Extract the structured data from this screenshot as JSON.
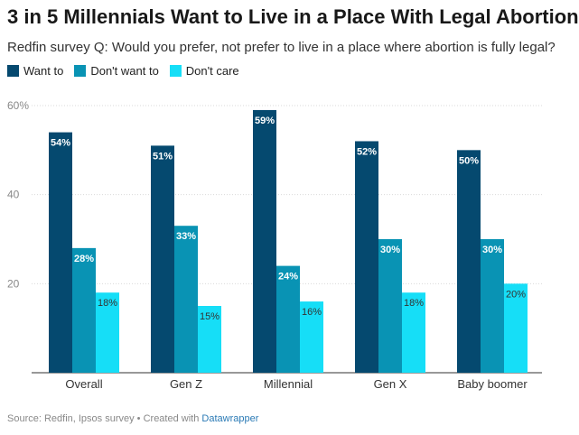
{
  "title": "3 in 5 Millennials Want to Live in a Place With Legal Abortion",
  "subtitle": "Redfin survey Q: Would you prefer, not prefer to live in a place where abortion is fully legal?",
  "footer": {
    "prefix": "Source: Redfin, Ipsos survey • Created with ",
    "link_label": "Datawrapper"
  },
  "chart_data": {
    "type": "bar",
    "categories": [
      "Overall",
      "Gen Z",
      "Millennial",
      "Gen X",
      "Baby boomer"
    ],
    "series": [
      {
        "name": "Want to",
        "color": "#05496f",
        "values": [
          54,
          51,
          59,
          52,
          50
        ]
      },
      {
        "name": "Don't want to",
        "color": "#0993b4",
        "values": [
          28,
          33,
          24,
          30,
          30
        ]
      },
      {
        "name": "Don't care",
        "color": "#16def7",
        "values": [
          18,
          15,
          16,
          18,
          20
        ]
      }
    ],
    "value_labels": [
      [
        "54%",
        "51%",
        "59%",
        "52%",
        "50%"
      ],
      [
        "28%",
        "33%",
        "24%",
        "30%",
        "30%"
      ],
      [
        "18%",
        "15%",
        "16%",
        "18%",
        "20%"
      ]
    ],
    "label_colors": [
      "#ffffff",
      "#ffffff",
      "#333333"
    ],
    "ylim": [
      0,
      60
    ],
    "yticks": [
      {
        "value": 20,
        "label": "20"
      },
      {
        "value": 40,
        "label": "40"
      },
      {
        "value": 60,
        "label": "60%"
      }
    ],
    "grid": true,
    "legend_position": "top-left"
  }
}
